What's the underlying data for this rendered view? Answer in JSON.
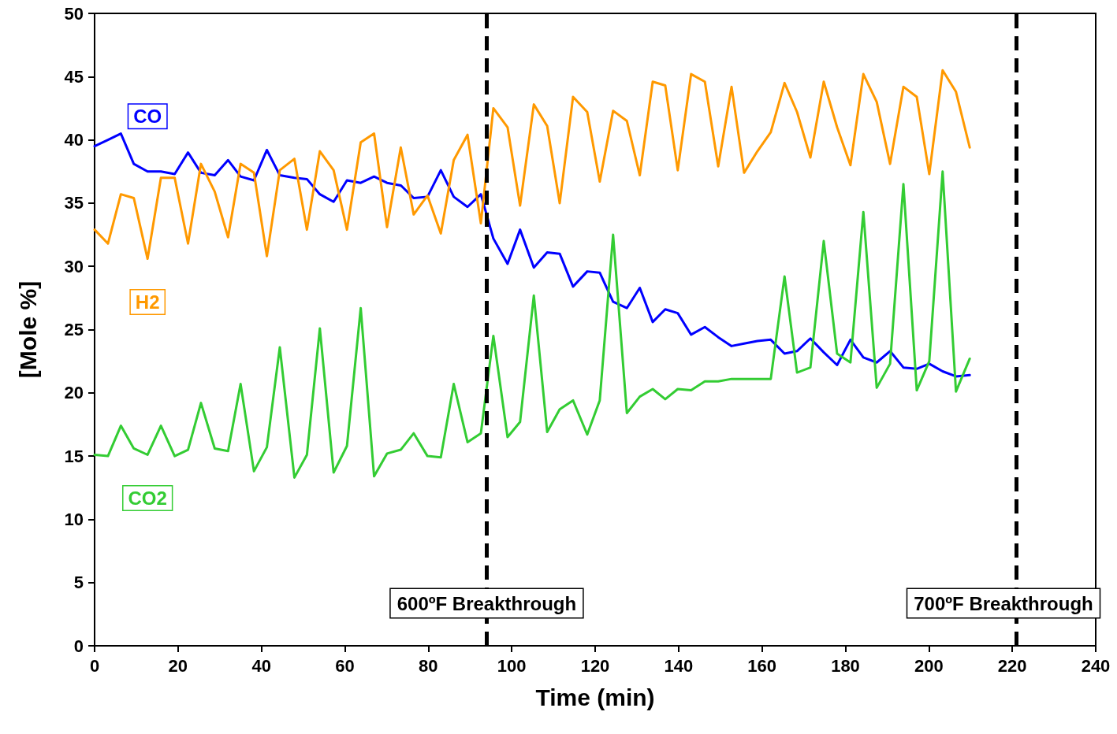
{
  "chart_data": {
    "type": "line",
    "xlabel": "Time (min)",
    "ylabel": "[Mole %]",
    "x": [
      0,
      3.2,
      6.3,
      9.4,
      12.7,
      15.9,
      19.2,
      22.4,
      25.5,
      28.8,
      32.0,
      35.0,
      38.2,
      41.3,
      44.4,
      47.9,
      50.9,
      54.0,
      57.3,
      60.5,
      63.8,
      67.0,
      70.1,
      73.4,
      76.5,
      79.8,
      83.0,
      86.1,
      89.4,
      92.6,
      95.6,
      99.0,
      102.0,
      105.3,
      108.5,
      111.5,
      114.7,
      118.1,
      121.1,
      124.3,
      127.6,
      130.7,
      133.8,
      136.8,
      139.8,
      143.0,
      146.3,
      149.5,
      152.7,
      155.7,
      158.9,
      162.1,
      165.4,
      168.4,
      171.6,
      174.8,
      178.0,
      181.2,
      184.3,
      187.5,
      190.7,
      193.9,
      197.1,
      200.1,
      203.3,
      206.5,
      209.8
    ],
    "series": [
      {
        "name": "CO",
        "color": "#0000ff",
        "values": [
          39.5,
          40.0,
          40.5,
          38.1,
          37.5,
          37.5,
          37.3,
          39.0,
          37.4,
          37.2,
          38.4,
          37.1,
          36.8,
          39.2,
          37.2,
          37.0,
          36.9,
          35.7,
          35.1,
          36.8,
          36.6,
          37.1,
          36.6,
          36.4,
          35.4,
          35.5,
          37.6,
          35.5,
          34.7,
          35.7,
          32.2,
          30.2,
          32.9,
          29.9,
          31.1,
          31.0,
          28.4,
          29.6,
          29.5,
          27.2,
          26.7,
          28.3,
          25.6,
          26.6,
          26.3,
          24.6,
          25.2,
          24.4,
          23.7,
          23.9,
          24.1,
          24.2,
          23.1,
          23.3,
          24.3,
          23.2,
          22.2,
          24.2,
          22.8,
          22.4,
          23.3,
          22.0,
          21.9,
          22.3,
          21.7,
          21.3,
          21.4
        ]
      },
      {
        "name": "H2",
        "color": "#ff9900",
        "values": [
          32.9,
          31.8,
          35.7,
          35.4,
          30.6,
          37.0,
          37.0,
          31.8,
          38.1,
          35.9,
          32.3,
          38.1,
          37.4,
          30.8,
          37.6,
          38.5,
          32.9,
          39.1,
          37.6,
          32.9,
          39.8,
          40.5,
          33.1,
          39.4,
          34.1,
          35.6,
          32.6,
          38.4,
          40.4,
          33.4,
          42.5,
          41.0,
          34.8,
          42.8,
          41.1,
          35.0,
          43.4,
          42.2,
          36.7,
          42.3,
          41.5,
          37.2,
          44.6,
          44.3,
          37.6,
          45.2,
          44.6,
          37.9,
          44.2,
          37.4,
          39.1,
          40.6,
          44.5,
          42.2,
          38.6,
          44.6,
          41.0,
          38.0,
          45.2,
          43.0,
          38.1,
          44.2,
          43.4,
          37.3,
          45.5,
          43.8,
          39.4
        ]
      },
      {
        "name": "CO2",
        "color": "#33cc33",
        "values": [
          15.1,
          15.0,
          17.4,
          15.6,
          15.1,
          17.4,
          15.0,
          15.5,
          19.2,
          15.6,
          15.4,
          20.7,
          13.8,
          15.7,
          23.6,
          13.3,
          15.1,
          25.1,
          13.7,
          15.8,
          26.7,
          13.4,
          15.2,
          15.5,
          16.8,
          15.0,
          14.9,
          20.7,
          16.1,
          16.8,
          24.5,
          16.5,
          17.7,
          27.7,
          16.9,
          18.7,
          19.4,
          16.7,
          19.4,
          32.5,
          18.4,
          19.7,
          20.3,
          19.5,
          20.3,
          20.2,
          20.9,
          20.9,
          21.1,
          21.1,
          21.1,
          21.1,
          29.2,
          21.6,
          22.0,
          32.0,
          23.1,
          22.4,
          34.3,
          20.4,
          22.3,
          36.5,
          20.2,
          22.5,
          37.5,
          20.1,
          22.7
        ]
      }
    ],
    "xlim": [
      0,
      240
    ],
    "xticks": [
      0,
      20,
      40,
      60,
      80,
      100,
      120,
      140,
      160,
      180,
      200,
      220,
      240
    ],
    "ylim": [
      0,
      50
    ],
    "yticks": [
      0,
      5,
      10,
      15,
      20,
      25,
      30,
      35,
      40,
      45,
      50
    ],
    "ref_lines": [
      {
        "axis": "x",
        "value": 94,
        "label": "600ºF Breakthrough",
        "color": "#000000",
        "line_style": "dashed"
      },
      {
        "axis": "x",
        "value": 221,
        "label": "700ºF Breakthrough",
        "color": "#000000",
        "line_style": "dashed"
      }
    ],
    "grid": false,
    "legend": false,
    "marker": "none",
    "line_style": "solid"
  }
}
